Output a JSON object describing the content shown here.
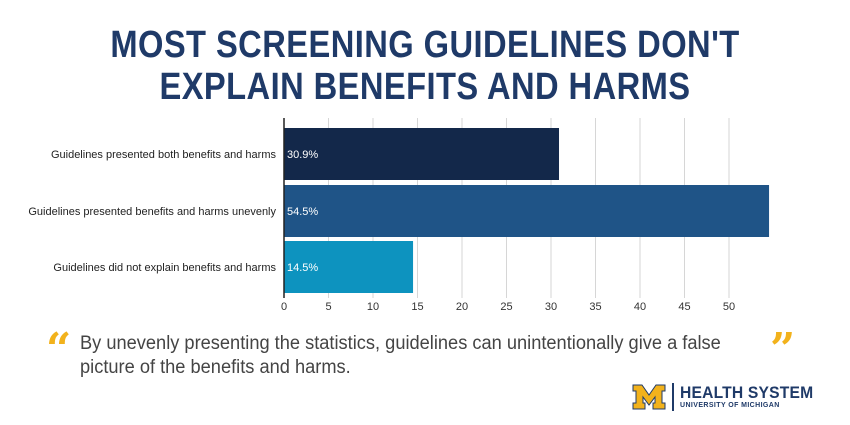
{
  "header": {
    "title_line1": "MOST SCREENING GUIDELINES DON'T",
    "title_line2": "EXPLAIN BENEFITS AND HARMS"
  },
  "chart_data": {
    "type": "bar",
    "orientation": "horizontal",
    "categories": [
      "Guidelines presented both benefits and harms",
      "Guidelines presented benefits and harms unevenly",
      "Guidelines did not explain benefits and harms"
    ],
    "values": [
      30.9,
      54.5,
      14.5
    ],
    "data_labels": [
      "30.9%",
      "54.5%",
      "14.5%"
    ],
    "colors": [
      "#13284a",
      "#1f5487",
      "#0d93bf"
    ],
    "xlim": [
      0,
      55
    ],
    "xticks": [
      0,
      5,
      10,
      15,
      20,
      25,
      30,
      35,
      40,
      45,
      50
    ],
    "grid": true
  },
  "quote": {
    "open_mark": "“",
    "text": "By unevenly presenting the statistics, guidelines can unintentionally give a false  picture of the benefits and harms.",
    "close_mark": "”"
  },
  "logo": {
    "mark": "M",
    "main": "HEALTH SYSTEM",
    "sub": "UNIVERSITY OF MICHIGAN",
    "colors": {
      "maize": "#f2b21c",
      "blue": "#1f3a68"
    }
  }
}
